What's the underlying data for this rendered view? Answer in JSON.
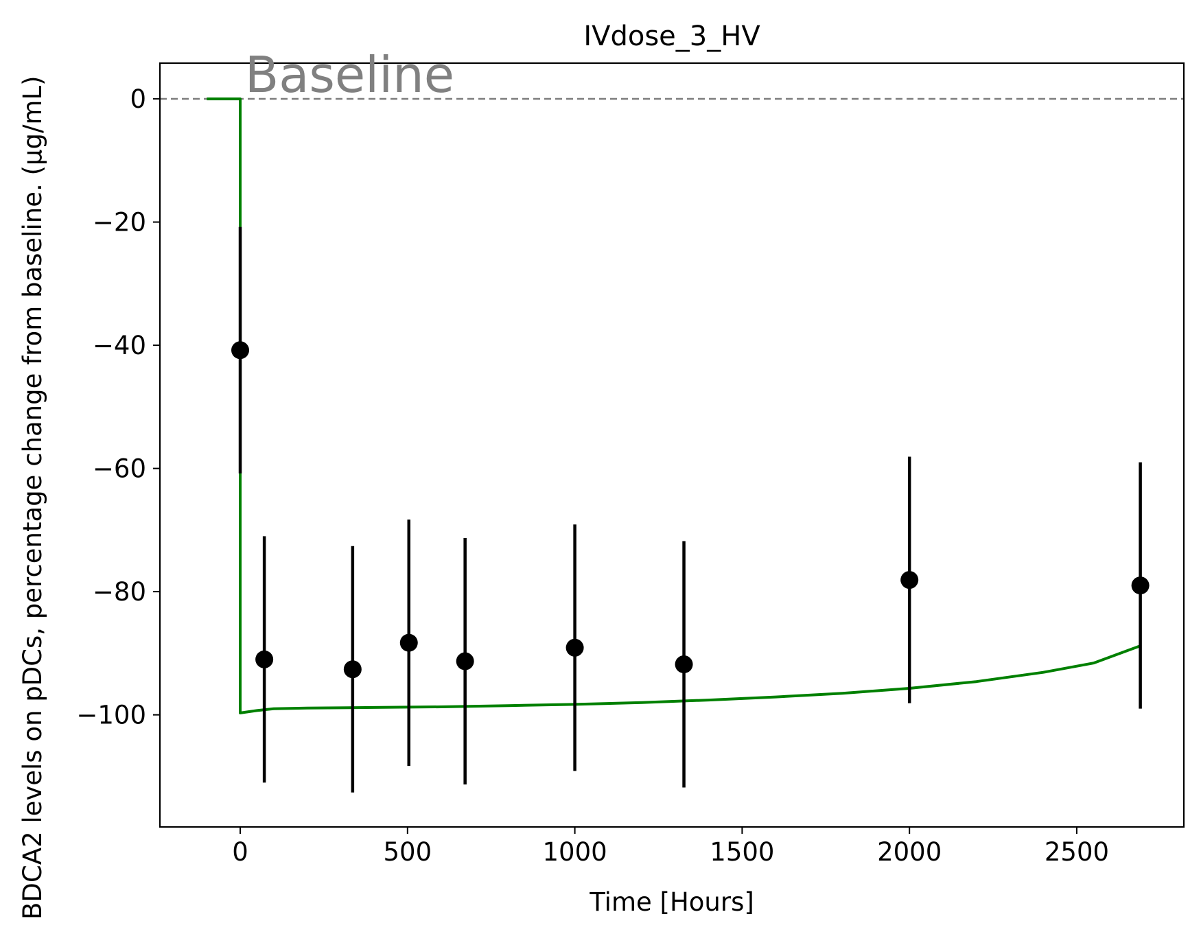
{
  "chart_data": {
    "type": "line",
    "title": "IVdose_3_HV",
    "xlabel": "Time [Hours]",
    "ylabel": "BDCA2 levels on pDCs, percentage change from baseline. (µg/mL)",
    "xlim": [
      -240,
      2820
    ],
    "ylim": [
      -118.2,
      5.8
    ],
    "x_ticks": [
      0,
      500,
      1000,
      1500,
      2000,
      2500
    ],
    "y_ticks": [
      0,
      -20,
      -40,
      -60,
      -80,
      -100
    ],
    "x_tick_labels": [
      "0",
      "500",
      "1000",
      "1500",
      "2000",
      "2500"
    ],
    "y_tick_labels": [
      "0",
      "−20",
      "−40",
      "−60",
      "−80",
      "−100"
    ],
    "grid": false,
    "baseline": {
      "label": "Baseline",
      "y": 0,
      "color": "#808080",
      "style": "dashed"
    },
    "series": [
      {
        "kind": "line",
        "color": "#008000",
        "points": [
          [
            -100,
            0
          ],
          [
            0,
            0
          ],
          [
            0,
            -99.7
          ],
          [
            50,
            -99.3
          ],
          [
            100,
            -99.0
          ],
          [
            200,
            -98.9
          ],
          [
            400,
            -98.8
          ],
          [
            600,
            -98.7
          ],
          [
            800,
            -98.5
          ],
          [
            1000,
            -98.3
          ],
          [
            1200,
            -98.0
          ],
          [
            1400,
            -97.6
          ],
          [
            1600,
            -97.1
          ],
          [
            1800,
            -96.5
          ],
          [
            2000,
            -95.7
          ],
          [
            2200,
            -94.6
          ],
          [
            2400,
            -93.1
          ],
          [
            2550,
            -91.6
          ],
          [
            2690,
            -88.8
          ]
        ]
      },
      {
        "kind": "errorbar",
        "color": "#000000",
        "points": [
          {
            "x": 0,
            "y": -40.8,
            "err": 20
          },
          {
            "x": 72,
            "y": -91.0,
            "err": 20
          },
          {
            "x": 336,
            "y": -92.6,
            "err": 20
          },
          {
            "x": 504,
            "y": -88.3,
            "err": 20
          },
          {
            "x": 672,
            "y": -91.3,
            "err": 20
          },
          {
            "x": 1000,
            "y": -89.1,
            "err": 20
          },
          {
            "x": 1326,
            "y": -91.8,
            "err": 20
          },
          {
            "x": 2000,
            "y": -78.1,
            "err": 20
          },
          {
            "x": 2690,
            "y": -79.0,
            "err": 20
          }
        ]
      }
    ]
  }
}
